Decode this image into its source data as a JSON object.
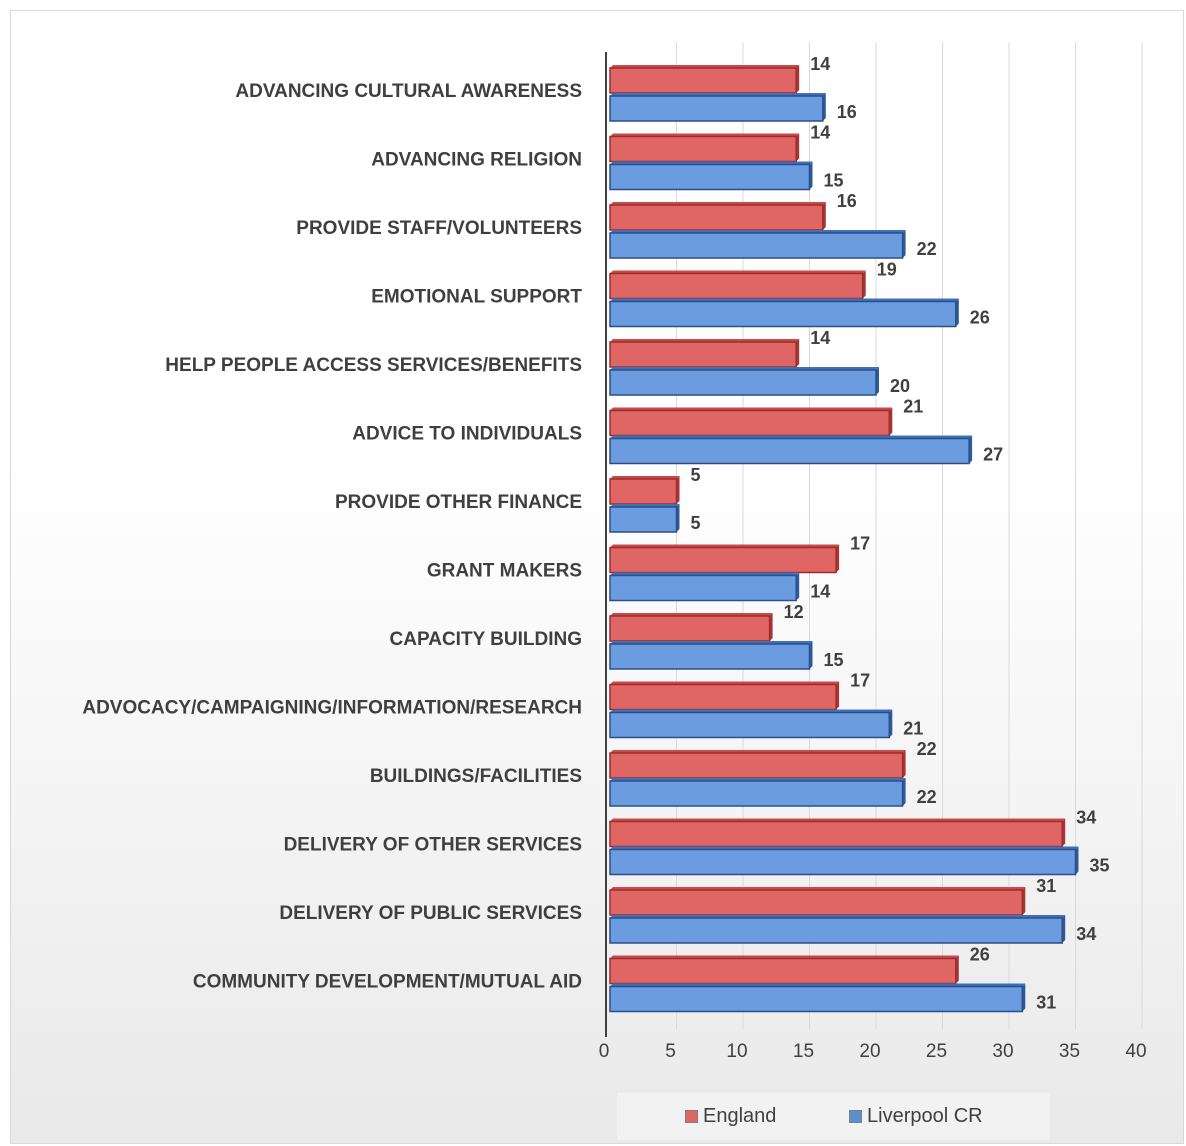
{
  "chart_data": {
    "type": "bar",
    "orientation": "horizontal",
    "categories": [
      "ADVANCING CULTURAL AWARENESS",
      "ADVANCING RELIGION",
      "PROVIDE STAFF/VOLUNTEERS",
      "EMOTIONAL SUPPORT",
      "HELP PEOPLE ACCESS SERVICES/BENEFITS",
      "ADVICE TO INDIVIDUALS",
      "PROVIDE OTHER FINANCE",
      "GRANT MAKERS",
      "CAPACITY BUILDING",
      "ADVOCACY/CAMPAIGNING/INFORMATION/RESEARCH",
      "BUILDINGS/FACILITIES",
      "DELIVERY OF OTHER SERVICES",
      "DELIVERY OF PUBLIC SERVICES",
      "COMMUNITY DEVELOPMENT/MUTUAL AID"
    ],
    "series": [
      {
        "name": "England",
        "color": "#e06666",
        "values": [
          14,
          14,
          16,
          19,
          14,
          21,
          5,
          17,
          12,
          17,
          22,
          34,
          31,
          26
        ]
      },
      {
        "name": "Liverpool CR",
        "color": "#5b8fd0",
        "values": [
          16,
          15,
          22,
          26,
          20,
          27,
          5,
          14,
          15,
          21,
          22,
          35,
          34,
          31
        ]
      }
    ],
    "x_ticks": [
      "0",
      "5",
      "10",
      "15",
      "20",
      "25",
      "30",
      "35",
      "40"
    ],
    "xlim": [
      0,
      40
    ],
    "grid": true,
    "legend_position": "bottom",
    "style": "3d-bar"
  }
}
